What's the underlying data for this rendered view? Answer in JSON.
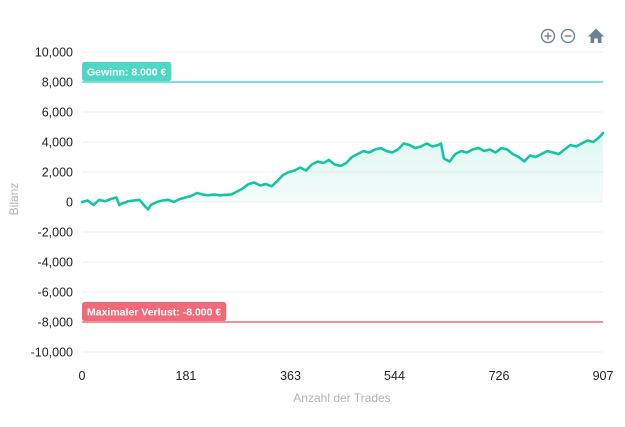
{
  "toolbar": {
    "zoom_in_icon": "zoom-in-icon",
    "zoom_out_icon": "zoom-out-icon",
    "reset_icon": "home-icon"
  },
  "chart_data": {
    "type": "area",
    "title": "",
    "xlabel": "Anzahl der Trades",
    "ylabel": "Bilanz",
    "xlim": [
      0,
      907
    ],
    "ylim": [
      -10000,
      10000
    ],
    "x_ticks": [
      0,
      181,
      363,
      544,
      726,
      907
    ],
    "y_ticks": [
      10000,
      8000,
      6000,
      4000,
      2000,
      0,
      -2000,
      -4000,
      -6000,
      -8000,
      -10000
    ],
    "y_tick_labels": [
      "10,000",
      "8,000",
      "6,000",
      "4,000",
      "2,000",
      "0",
      "-2,000",
      "-4,000",
      "-6,000",
      "-8,000",
      "-10,000"
    ],
    "grid": true,
    "annotations": [
      {
        "label": "Gewinn: 8.000 €",
        "y": 8000,
        "color": "#4ed8c4"
      },
      {
        "label": "Maximaler Verlust: -8.000 €",
        "y": -8000,
        "color": "#f06a7a"
      }
    ],
    "series": [
      {
        "color": "#14c4a4",
        "x": [
          0,
          10,
          20,
          30,
          40,
          50,
          60,
          65,
          70,
          80,
          90,
          100,
          110,
          115,
          120,
          130,
          140,
          150,
          160,
          170,
          180,
          190,
          200,
          210,
          220,
          230,
          240,
          250,
          260,
          270,
          280,
          290,
          300,
          310,
          320,
          330,
          340,
          350,
          360,
          370,
          380,
          390,
          400,
          410,
          420,
          430,
          440,
          450,
          460,
          470,
          480,
          490,
          500,
          510,
          520,
          530,
          540,
          550,
          560,
          570,
          580,
          590,
          600,
          610,
          620,
          625,
          630,
          640,
          650,
          660,
          670,
          680,
          690,
          700,
          710,
          720,
          730,
          740,
          750,
          760,
          770,
          780,
          790,
          800,
          810,
          820,
          830,
          840,
          850,
          860,
          870,
          880,
          890,
          900,
          907
        ],
        "y": [
          0,
          100,
          -200,
          150,
          50,
          200,
          300,
          -200,
          -100,
          50,
          100,
          150,
          -300,
          -500,
          -200,
          0,
          100,
          150,
          0,
          200,
          300,
          400,
          600,
          500,
          450,
          500,
          450,
          480,
          500,
          700,
          900,
          1200,
          1300,
          1100,
          1200,
          1050,
          1400,
          1800,
          2000,
          2100,
          2300,
          2100,
          2500,
          2700,
          2600,
          2800,
          2500,
          2400,
          2600,
          3000,
          3200,
          3400,
          3300,
          3500,
          3600,
          3400,
          3300,
          3500,
          3900,
          3800,
          3600,
          3700,
          3900,
          3700,
          3800,
          3900,
          2900,
          2700,
          3200,
          3400,
          3300,
          3500,
          3600,
          3400,
          3500,
          3300,
          3600,
          3500,
          3200,
          3000,
          2700,
          3100,
          3000,
          3200,
          3400,
          3300,
          3200,
          3500,
          3800,
          3700,
          3900,
          4100,
          4000,
          4300,
          4600
        ]
      }
    ]
  }
}
